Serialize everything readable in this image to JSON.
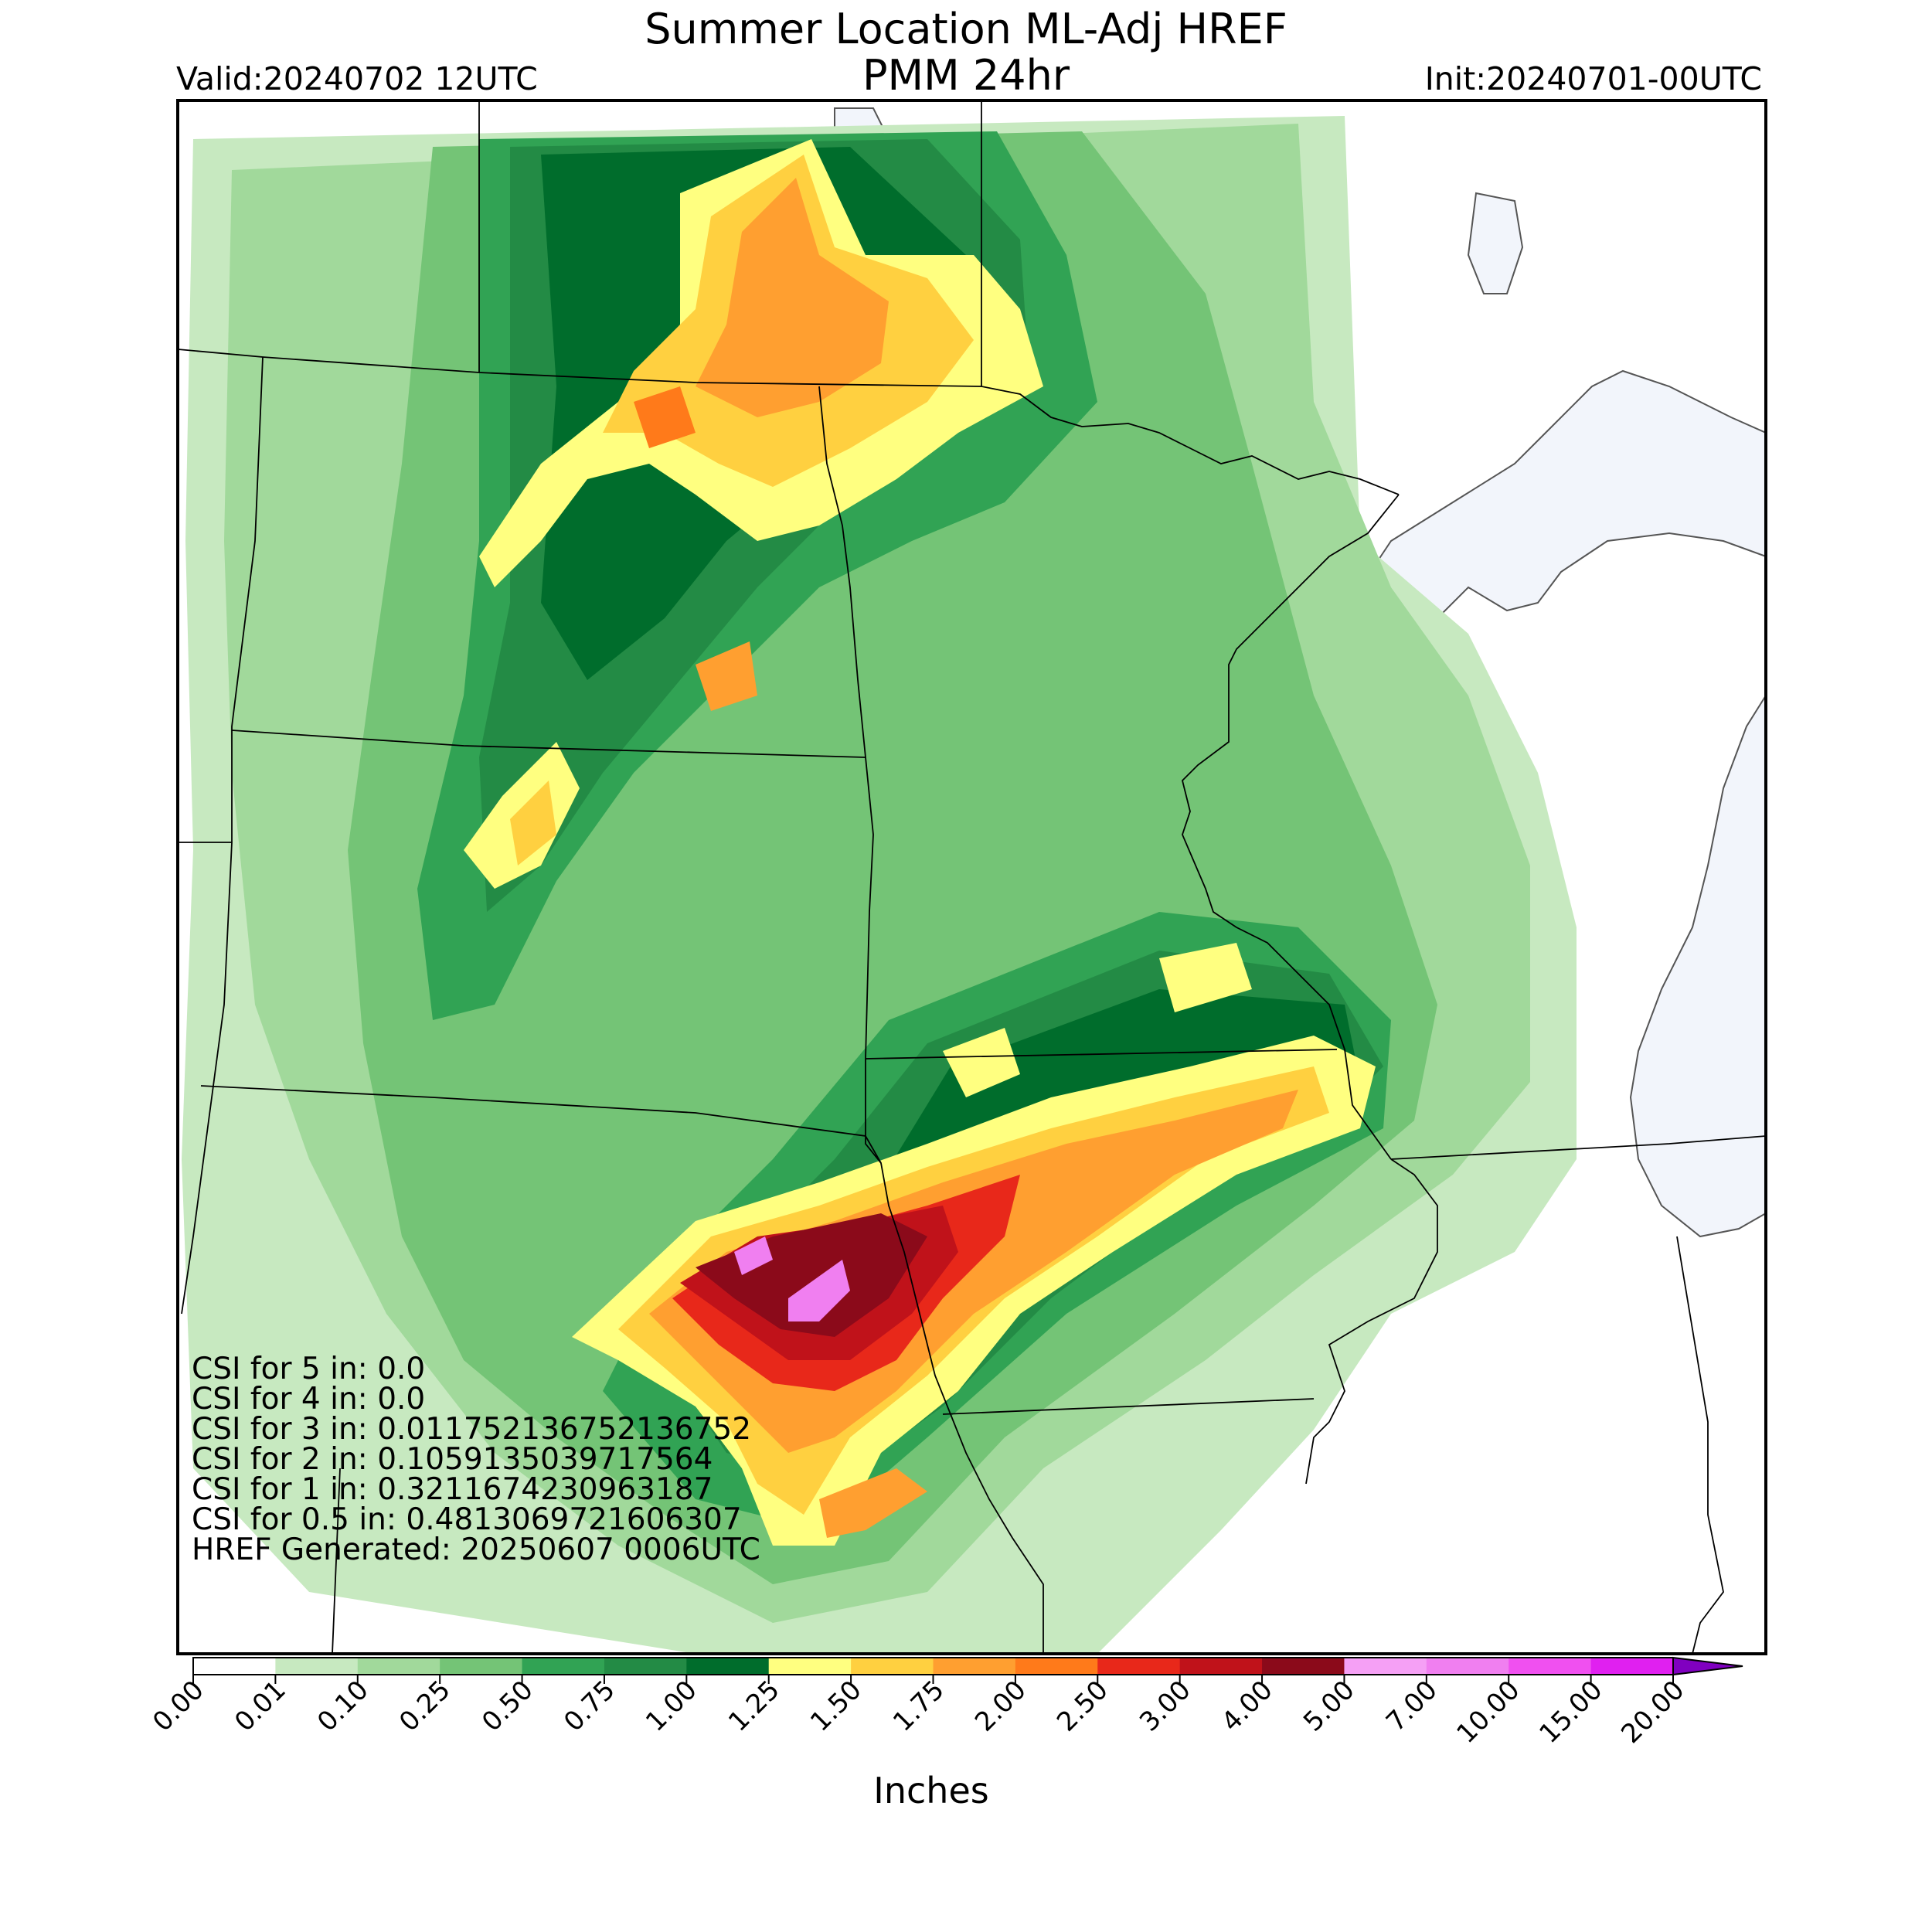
{
  "header": {
    "title_line1": "Summer Location ML-Adj HREF",
    "title_line2": "PMM 24hr",
    "valid": "Valid:20240702 12UTC",
    "init": "Init:20240701-00UTC"
  },
  "stats": [
    "CSI for 5 in: 0.0",
    "CSI for 4 in: 0.0",
    "CSI for 3 in: 0.011752136752136752",
    "CSI for 2 in: 0.1059135039717564",
    "CSI for 1 in: 0.3211674230963187",
    "CSI for 0.5 in: 0.4813069721606307",
    "HREF Generated: 20250607 0006UTC"
  ],
  "colorbar": {
    "units": "Inches",
    "levels": [
      "0.00",
      "0.01",
      "0.10",
      "0.25",
      "0.50",
      "0.75",
      "1.00",
      "1.25",
      "1.50",
      "1.75",
      "2.00",
      "2.50",
      "3.00",
      "4.00",
      "5.00",
      "7.00",
      "10.00",
      "15.00",
      "20.00"
    ],
    "colors": [
      "#ffffff",
      "#c7e9c0",
      "#a1d99b",
      "#74c476",
      "#31a354",
      "#238b45",
      "#006d2c",
      "#ffff80",
      "#ffd040",
      "#ff9f30",
      "#ff7a1a",
      "#e8281a",
      "#c0121a",
      "#8b0a1a",
      "#f5a0f5",
      "#f07ff0",
      "#f050f0",
      "#e020f0",
      "#b000e0",
      "#8000c0"
    ]
  },
  "colors": {
    "water": "#f2f5fb",
    "border": "#000000"
  }
}
